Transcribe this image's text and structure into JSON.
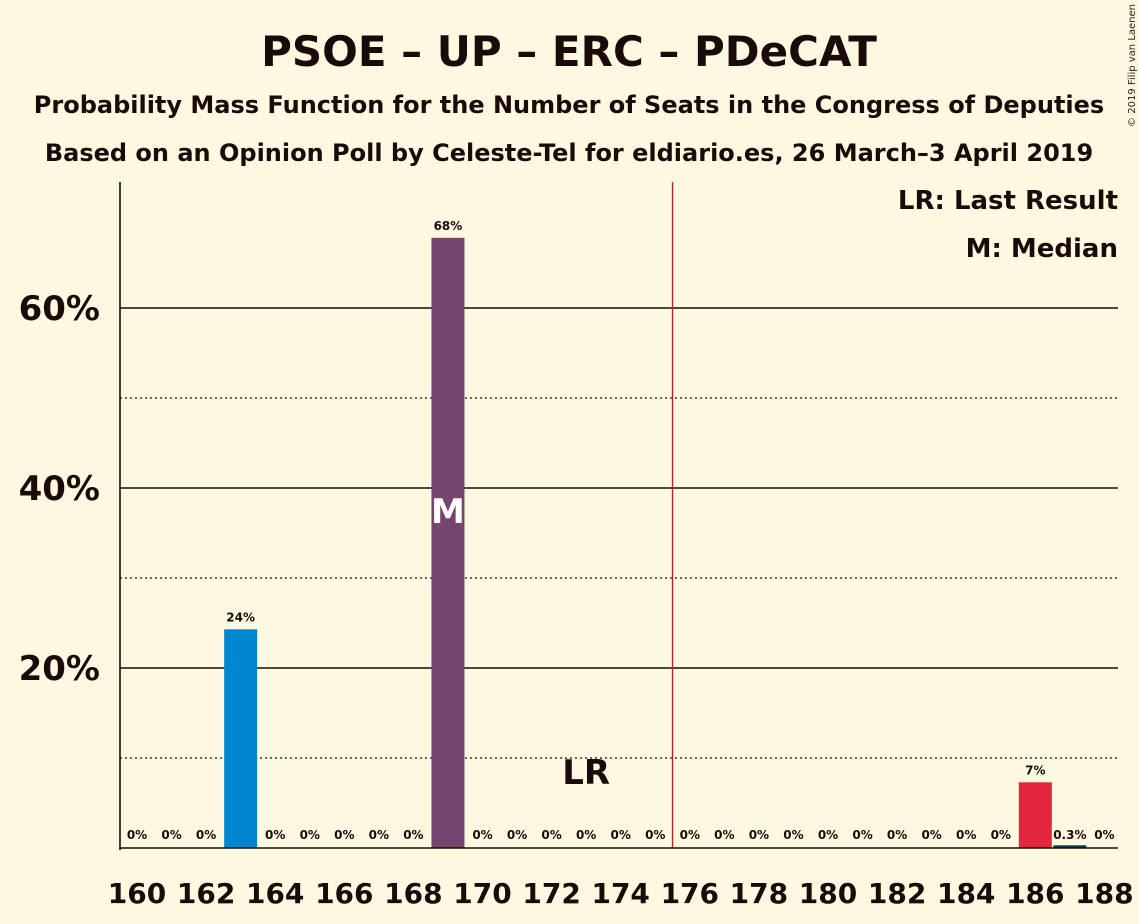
{
  "chart_data": {
    "type": "bar",
    "title": "PSOE – UP – ERC – PDeCAT",
    "subtitle1": "Probability Mass Function for the Number of Seats in the Congress of Deputies",
    "subtitle2": "Based on an Opinion Poll by Celeste-Tel for eldiario.es, 26 March–3 April 2019",
    "copyright": "© 2019 Filip van Laenen",
    "legend": {
      "lr": "LR: Last Result",
      "m": "M: Median",
      "placement": "top-right"
    },
    "x": [
      160,
      161,
      162,
      163,
      164,
      165,
      166,
      167,
      168,
      169,
      170,
      171,
      172,
      173,
      174,
      175,
      176,
      177,
      178,
      179,
      180,
      181,
      182,
      183,
      184,
      185,
      186,
      187,
      188
    ],
    "values": [
      0,
      0,
      0,
      24.3,
      0,
      0,
      0,
      0,
      0,
      67.8,
      0,
      0,
      0,
      0,
      0,
      0,
      0,
      0,
      0,
      0,
      0,
      0,
      0,
      0,
      0,
      0,
      7.3,
      0.3,
      0
    ],
    "data_labels": [
      "0%",
      "0%",
      "0%",
      "24%",
      "0%",
      "0%",
      "0%",
      "0%",
      "0%",
      "68%",
      "0%",
      "0%",
      "0%",
      "0%",
      "0%",
      "0%",
      "0%",
      "0%",
      "0%",
      "0%",
      "0%",
      "0%",
      "0%",
      "0%",
      "0%",
      "0%",
      "7%",
      "0.3%",
      "0%"
    ],
    "bar_colors": {
      "163": "#0087cf",
      "169": "#75446f",
      "186": "#e3263e",
      "187": "#12364a"
    },
    "xtick_labels": [
      "160",
      "162",
      "164",
      "166",
      "168",
      "170",
      "172",
      "174",
      "176",
      "178",
      "180",
      "182",
      "184",
      "186",
      "188"
    ],
    "xtick_values": [
      160,
      162,
      164,
      166,
      168,
      170,
      172,
      174,
      176,
      178,
      180,
      182,
      184,
      186,
      188
    ],
    "ytick_labels": [
      "20%",
      "40%",
      "60%"
    ],
    "ytick_values": [
      20,
      40,
      60
    ],
    "dotted_grid": [
      10,
      30,
      50
    ],
    "ylim": [
      0,
      74
    ],
    "majority_line": 176,
    "majority_color": "#b0282a",
    "last_result": 173,
    "last_result_label": "LR",
    "median": 169,
    "median_label": "M"
  }
}
